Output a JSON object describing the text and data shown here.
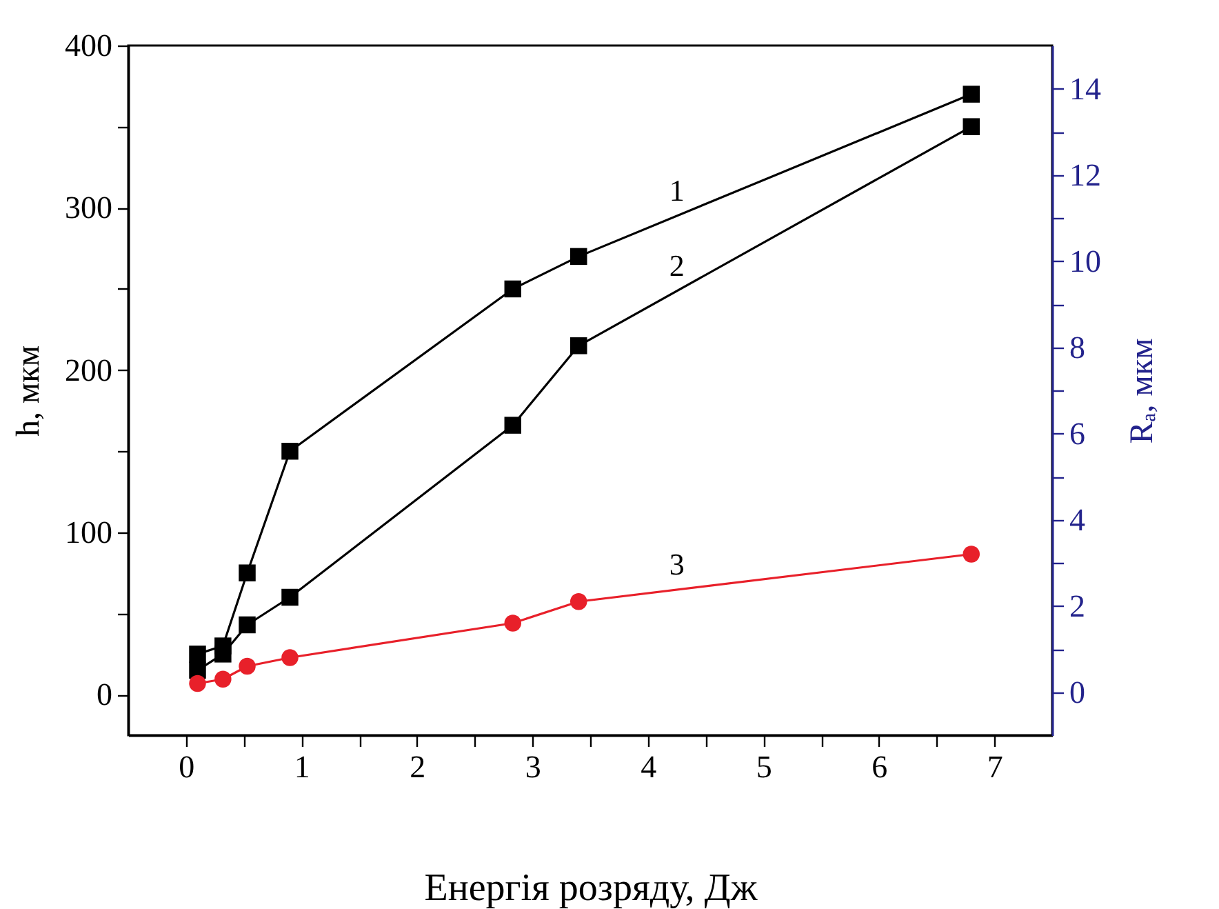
{
  "chart_data": {
    "type": "line",
    "xlabel": "Енергія розряду, Дж",
    "ylabel": "h, мкм",
    "y2label": "Rₐ, мкм",
    "x": [
      0.1,
      0.32,
      0.53,
      0.9,
      2.83,
      3.4,
      6.8
    ],
    "series": [
      {
        "name": "1",
        "color": "#000000",
        "marker": "square",
        "values": [
          25,
          30,
          75,
          150,
          250,
          270,
          370
        ]
      },
      {
        "name": "2",
        "color": "#000000",
        "marker": "square",
        "values": [
          15,
          25,
          43,
          60,
          166,
          215,
          350
        ]
      },
      {
        "name": "3",
        "color": "#e8202a",
        "marker": "circle",
        "axis": "y2",
        "values": [
          0.2,
          0.3,
          0.6,
          0.8,
          1.6,
          2.1,
          3.2
        ]
      }
    ],
    "xlim": [
      -0.5,
      7.5
    ],
    "xticks": [
      0,
      {
        "value": 0.5,
        "label": null
      },
      1,
      {
        "value": 1.5,
        "label": null
      },
      2,
      {
        "value": 2.5,
        "label": null
      },
      3,
      {
        "value": 3.5,
        "label": null
      },
      4,
      {
        "value": 4.5,
        "label": null
      },
      5,
      {
        "value": 5.5,
        "label": null
      },
      6,
      {
        "value": 6.5,
        "label": null
      },
      7
    ],
    "ylim": [
      -25,
      400
    ],
    "yticks": [
      0,
      {
        "value": 50,
        "label": null
      },
      100,
      {
        "value": 150,
        "label": null
      },
      200,
      {
        "value": 250,
        "label": null
      },
      300,
      {
        "value": 350,
        "label": null
      },
      400
    ],
    "y2lim": [
      -1,
      15
    ],
    "y2ticks": [
      0,
      {
        "value": 1,
        "label": null
      },
      2,
      {
        "value": 3,
        "label": null
      },
      4,
      {
        "value": 5,
        "label": null
      },
      6,
      {
        "value": 7,
        "label": null
      },
      8,
      {
        "value": 9,
        "label": null
      },
      10,
      {
        "value": 11,
        "label": null
      },
      12,
      {
        "value": 13,
        "label": null
      },
      14
    ],
    "grid": false
  }
}
